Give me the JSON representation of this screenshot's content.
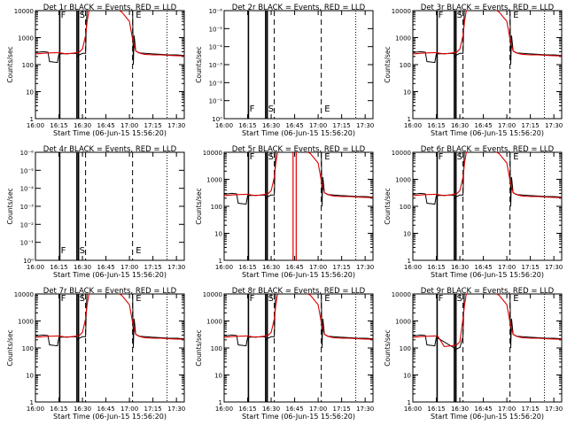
{
  "chart_data": {
    "type": "line",
    "figure": "RHESSI detector lightcurves, 3x3 grid",
    "x_label": "Start Time (06-Jun-15 15:56:20)",
    "y_label": "Counts/sec",
    "x_ticks": [
      "16:00",
      "16:15",
      "16:30",
      "16:45",
      "17:00",
      "17:15",
      "17:30"
    ],
    "x_range_min": [
      0,
      95
    ],
    "markers": [
      {
        "label": "F",
        "t": 15
      },
      {
        "label": "S",
        "t": 27
      },
      {
        "label": "E",
        "t": 63
      }
    ],
    "vlines_solid": [
      15.5,
      26.5,
      27.5
    ],
    "vlines_dashed": [
      32,
      62
    ],
    "vlines_dotted": [
      84
    ],
    "log_ticks": [
      "1",
      "10",
      "100",
      "1000",
      "10000"
    ],
    "log_range": [
      1,
      10000
    ],
    "empty_ticks": [
      "10⁻⁶",
      "10⁻⁵",
      "10⁻⁴",
      "10⁻³",
      "10⁻²",
      "10⁻¹",
      "10⁰"
    ],
    "colors": {
      "events": "#000000",
      "lld": "#dd0000"
    },
    "panels": [
      {
        "title": "Det 1r BLACK = Events, RED = LLD",
        "empty": false,
        "variant": "a"
      },
      {
        "title": "Det 2r BLACK = Events, RED = LLD",
        "empty": true
      },
      {
        "title": "Det 3r BLACK = Events, RED = LLD",
        "empty": false,
        "variant": "a"
      },
      {
        "title": "Det 4r BLACK = Events, RED = LLD",
        "empty": true
      },
      {
        "title": "Det 5r BLACK = Events, RED = LLD",
        "empty": false,
        "variant": "spike"
      },
      {
        "title": "Det 6r BLACK = Events, RED = LLD",
        "empty": false,
        "variant": "a"
      },
      {
        "title": "Det 7r BLACK = Events, RED = LLD",
        "empty": false,
        "variant": "a"
      },
      {
        "title": "Det 8r BLACK = Events, RED = LLD",
        "empty": false,
        "variant": "a"
      },
      {
        "title": "Det 9r BLACK = Events, RED = LLD",
        "empty": false,
        "variant": "dip"
      }
    ],
    "series_lld": {
      "t": [
        0,
        8,
        15,
        16,
        20,
        25,
        28,
        30,
        32,
        33,
        34,
        35,
        37,
        40,
        45,
        50,
        55,
        60,
        62,
        64,
        67,
        70,
        75,
        80,
        85,
        90,
        95
      ],
      "values": [
        250,
        270,
        280,
        270,
        250,
        270,
        290,
        380,
        1200,
        4000,
        9000,
        12000,
        13000,
        13000,
        12000,
        12500,
        9000,
        4000,
        900,
        320,
        260,
        240,
        230,
        230,
        220,
        215,
        210
      ]
    },
    "series_events": {
      "t": [
        0,
        5,
        8,
        9,
        14,
        15,
        26,
        27,
        28,
        30,
        32,
        32.5,
        33,
        60,
        62,
        62.5,
        63,
        64,
        66,
        70,
        75,
        80,
        85,
        90,
        95
      ],
      "values": [
        280,
        300,
        290,
        130,
        120,
        250,
        260,
        200,
        230,
        260,
        260,
        3000,
        15000,
        15000,
        15000,
        100,
        1200,
        320,
        270,
        260,
        250,
        240,
        230,
        230,
        220
      ]
    }
  }
}
